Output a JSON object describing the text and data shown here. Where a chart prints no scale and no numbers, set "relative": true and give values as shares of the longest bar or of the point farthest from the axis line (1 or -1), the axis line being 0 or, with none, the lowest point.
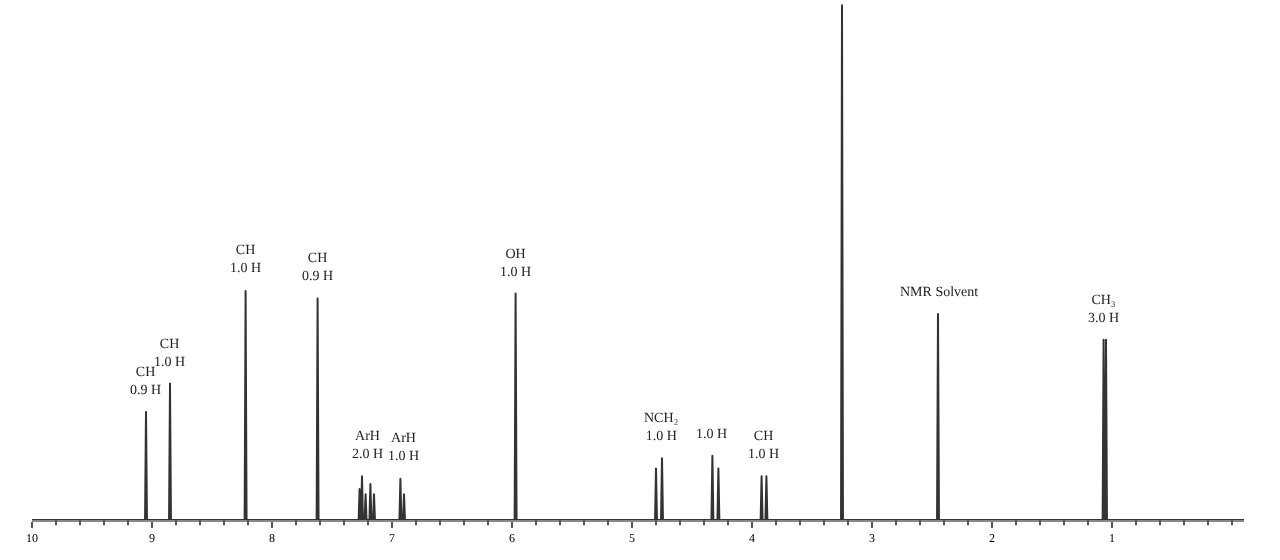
{
  "chart_data": {
    "type": "line",
    "relative": true,
    "color": "#333333",
    "tick_labels": "x",
    "x": [
      10,
      9.058,
      9.05,
      9.042,
      8.858,
      8.85,
      8.842,
      8.228,
      8.22,
      8.212,
      7.628,
      7.62,
      7.612,
      7.278,
      7.27,
      7.262,
      7.258,
      7.25,
      7.242,
      7.228,
      7.22,
      7.212,
      7.188,
      7.18,
      7.172,
      7.158,
      7.15,
      7.142,
      6.938,
      6.93,
      6.922,
      6.908,
      6.9,
      6.892,
      5.978,
      5.97,
      5.962,
      4.808,
      4.8,
      4.792,
      4.758,
      4.75,
      4.742,
      4.338,
      4.33,
      4.322,
      4.288,
      4.28,
      4.272,
      3.928,
      3.92,
      3.912,
      3.888,
      3.88,
      3.872,
      3.258,
      3.25,
      3.242,
      2.458,
      2.45,
      2.442,
      1.078,
      1.07,
      1.062,
      1.058,
      1.05,
      1.042,
      -0.1
    ],
    "values": [
      0,
      0,
      0.21,
      0,
      0,
      0.265,
      0,
      0,
      0.445,
      0,
      0,
      0.43,
      0,
      0,
      0.06,
      0,
      0,
      0.085,
      0,
      0,
      0.05,
      0,
      0,
      0.07,
      0,
      0,
      0.05,
      0,
      0,
      0.08,
      0,
      0,
      0.05,
      0,
      0,
      0.44,
      0,
      0,
      0.1,
      0,
      0,
      0.12,
      0,
      0,
      0.125,
      0,
      0,
      0.1,
      0,
      0,
      0.085,
      0,
      0,
      0.085,
      0,
      0,
      1,
      0,
      0,
      0.4,
      0,
      0,
      0.35,
      0,
      0,
      0.35,
      0,
      0
    ],
    "xlim": [
      10,
      -0.1
    ],
    "xticks": [
      10,
      {
        "value": 9.8,
        "label": null
      },
      {
        "value": 9.6,
        "label": null
      },
      {
        "value": 9.4,
        "label": null
      },
      {
        "value": 9.2,
        "label": null
      },
      9,
      {
        "value": 8.8,
        "label": null
      },
      {
        "value": 8.6,
        "label": null
      },
      {
        "value": 8.4,
        "label": null
      },
      {
        "value": 8.2,
        "label": null
      },
      8,
      {
        "value": 7.8,
        "label": null
      },
      {
        "value": 7.6,
        "label": null
      },
      {
        "value": 7.4,
        "label": null
      },
      {
        "value": 7.2,
        "label": null
      },
      7,
      {
        "value": 6.8,
        "label": null
      },
      {
        "value": 6.6,
        "label": null
      },
      {
        "value": 6.4,
        "label": null
      },
      {
        "value": 6.2,
        "label": null
      },
      6,
      {
        "value": 5.8,
        "label": null
      },
      {
        "value": 5.6,
        "label": null
      },
      {
        "value": 5.4,
        "label": null
      },
      {
        "value": 5.2,
        "label": null
      },
      5,
      {
        "value": 4.8,
        "label": null
      },
      {
        "value": 4.6,
        "label": null
      },
      {
        "value": 4.4,
        "label": null
      },
      {
        "value": 4.2,
        "label": null
      },
      4,
      {
        "value": 3.8,
        "label": null
      },
      {
        "value": 3.6,
        "label": null
      },
      {
        "value": 3.4,
        "label": null
      },
      {
        "value": 3.2,
        "label": null
      },
      3,
      {
        "value": 2.8,
        "label": null
      },
      {
        "value": 2.6,
        "label": null
      },
      {
        "value": 2.4,
        "label": null
      },
      {
        "value": 2.2,
        "label": null
      },
      2,
      {
        "value": 1.8,
        "label": null
      },
      {
        "value": 1.6,
        "label": null
      },
      {
        "value": 1.4,
        "label": null
      },
      {
        "value": 1.2,
        "label": null
      },
      1,
      {
        "value": 0.8,
        "label": null
      },
      {
        "value": 0.6,
        "label": null
      },
      {
        "value": 0.4,
        "label": null
      },
      {
        "value": 0.2,
        "label": null
      },
      {
        "value": 0,
        "label": null
      }
    ],
    "annotations": [
      {
        "text": "CH\n0.9 H",
        "x": 9.05,
        "y": 0.21
      },
      {
        "text": "CH\n1.0 H",
        "x": 8.85,
        "y": 0.265
      },
      {
        "text": "CH\n1.0 H",
        "x": 8.22,
        "y": 0.445
      },
      {
        "text": "CH\n0.9 H",
        "x": 7.62,
        "y": 0.43
      },
      {
        "text": "ArH\n2.0 H",
        "x": 7.2,
        "y": 0.085
      },
      {
        "text": "ArH\n1.0 H",
        "x": 6.9,
        "y": 0.08
      },
      {
        "text": "OH\n1.0 H",
        "x": 5.97,
        "y": 0.44
      },
      {
        "text": "NCH₂\n1.0 H",
        "x": 4.75,
        "y": 0.12
      },
      {
        "text": "1.0 H",
        "x": 4.33,
        "y": 0.125
      },
      {
        "text": "CH\n1.0 H",
        "x": 3.9,
        "y": 0.085
      },
      {
        "text": "NMR Solvent",
        "x": 2.45,
        "y": 0.4
      },
      {
        "text": "CH₃\n3.0 H",
        "x": 1.06,
        "y": 0.35
      }
    ]
  }
}
